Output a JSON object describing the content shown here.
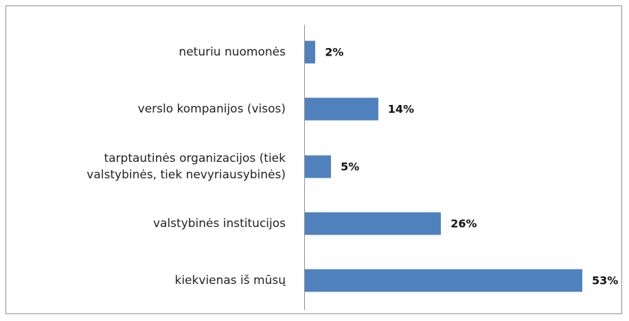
{
  "chart_data": {
    "type": "bar",
    "orientation": "horizontal",
    "categories": [
      "neturiu nuomonės",
      "verslo kompanijos (visos)",
      "tarptautinės organizacijos (tiek valstybinės, tiek nevyriausybinės)",
      "valstybinės institucijos",
      "kiekvienas iš mūsų"
    ],
    "values": [
      2,
      14,
      5,
      26,
      53
    ],
    "value_labels": [
      "2%",
      "14%",
      "5%",
      "26%",
      "53%"
    ],
    "color": "#4f81bd"
  }
}
